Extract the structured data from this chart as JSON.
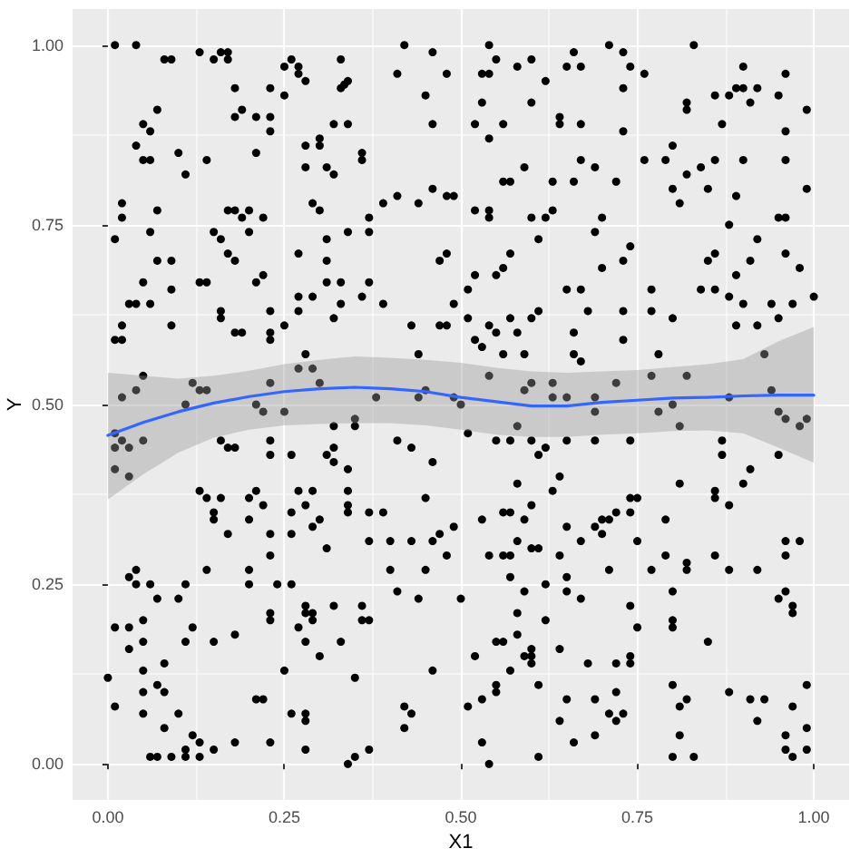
{
  "chart_data": {
    "type": "scatter",
    "xlabel": "X1",
    "ylabel": "Y",
    "xlim": [
      -0.05,
      1.05
    ],
    "ylim": [
      -0.05,
      1.05
    ],
    "xticks": [
      {
        "value": 0,
        "label": "0.00"
      },
      {
        "value": 0.25,
        "label": "0.25"
      },
      {
        "value": 0.5,
        "label": "0.50"
      },
      {
        "value": 0.75,
        "label": "0.75"
      },
      {
        "value": 1,
        "label": "1.00"
      }
    ],
    "yticks": [
      {
        "value": 0,
        "label": "0.00"
      },
      {
        "value": 0.25,
        "label": "0.25"
      },
      {
        "value": 0.5,
        "label": "0.50"
      },
      {
        "value": 0.75,
        "label": "0.75"
      },
      {
        "value": 1,
        "label": "1.00"
      }
    ],
    "grid": true,
    "marker": "circle",
    "series": [
      {
        "color": "#000000",
        "x": [
          0.01,
          0.04,
          0.08,
          0.09,
          0.13,
          0.15,
          0.16,
          0.17,
          0.17,
          0.18,
          0.19,
          0.18,
          0.21,
          0.23,
          0.23,
          0.23,
          0.25,
          0.26,
          0.27,
          0.27,
          0.28,
          0.25,
          0.33,
          0.33,
          0.335,
          0.34,
          0.34,
          0.32,
          0.07,
          0.05,
          0.06,
          0.04,
          0.05,
          0.06,
          0.1,
          0.11,
          0.14,
          0.21,
          0.28,
          0.3,
          0.3,
          0.28,
          0.31,
          0.32,
          0.36,
          0.36,
          0.41,
          0.42,
          0.46,
          0.48,
          0.45,
          0.46,
          0.01,
          0.02,
          0.02,
          0.07,
          0.06,
          0.17,
          0.18,
          0.2,
          0.19,
          0.22,
          0.15,
          0.16,
          0.2,
          0.17,
          0.18,
          0.07,
          0.09,
          0.05,
          0.03,
          0.04,
          0.06,
          0.09,
          0.13,
          0.14,
          0.21,
          0.22,
          0.16,
          0.16,
          0.18,
          0.19,
          0.09,
          0.02,
          0.01,
          0.02,
          0.05,
          0.23,
          0.23,
          0.23,
          0.25,
          0.27,
          0.27,
          0.27,
          0.29,
          0.31,
          0.31,
          0.29,
          0.3,
          0.31,
          0.34,
          0.37,
          0.37,
          0.33,
          0.33,
          0.36,
          0.37,
          0.39,
          0.32,
          0.39,
          0.41,
          0.44,
          0.46,
          0.48,
          0.49,
          0.47,
          0.48,
          0.49,
          0.51,
          0.43,
          0.47,
          0.48,
          0.44,
          0.28,
          0.27,
          0.29,
          0.3,
          0.23,
          0.12,
          0.13,
          0.14,
          0.04,
          0.02,
          0.11,
          0.21,
          0.22,
          0.25,
          0.38,
          0.45,
          0.44,
          0.49,
          0.5,
          0.54,
          0.55,
          0.53,
          0.54,
          0.58,
          0.6,
          0.62,
          0.6,
          0.53,
          0.52,
          0.56,
          0.54,
          0.65,
          0.66,
          0.67,
          0.71,
          0.73,
          0.74,
          0.73,
          0.76,
          0.83,
          0.64,
          0.64,
          0.67,
          0.73,
          0.59,
          0.56,
          0.57,
          0.63,
          0.66,
          0.67,
          0.69,
          0.72,
          0.52,
          0.54,
          0.54,
          0.6,
          0.62,
          0.63,
          0.61,
          0.69,
          0.7,
          0.74,
          0.73,
          0.7,
          0.57,
          0.56,
          0.55,
          0.52,
          0.51,
          0.54,
          0.57,
          0.55,
          0.58,
          0.6,
          0.61,
          0.52,
          0.53,
          0.56,
          0.59,
          0.65,
          0.67,
          0.68,
          0.66,
          0.66,
          0.67,
          0.73,
          0.73,
          0.77,
          0.77,
          0.8,
          0.78,
          0.76,
          0.79,
          0.8,
          0.82,
          0.8,
          0.81,
          0.84,
          0.85,
          0.86,
          0.9,
          0.82,
          0.82,
          0.86,
          0.88,
          0.89,
          0.9,
          0.9,
          0.91,
          0.92,
          0.87,
          0.96,
          0.95,
          0.99,
          0.96,
          0.96,
          0.99,
          0.89,
          0.88,
          0.95,
          0.96,
          0.92,
          0.96,
          0.98,
          0.91,
          0.89,
          0.85,
          0.86,
          0.84,
          0.86,
          0.88,
          0.9,
          0.89,
          0.92,
          0.94,
          0.95,
          0.97,
          1.0,
          0.93,
          0.54,
          0.59,
          0.6,
          0.63,
          0.63,
          0.65,
          0.69,
          0.69,
          0.72,
          0.77,
          0.82,
          0.78,
          0.8,
          0.94,
          0.95,
          0.88,
          0.01,
          0.01,
          0.02,
          0.03,
          0.05,
          0.01,
          0.03,
          0.16,
          0.17,
          0.18,
          0.23,
          0.23,
          0.26,
          0.32,
          0.35,
          0.35,
          0.32,
          0.31,
          0.32,
          0.34,
          0.41,
          0.43,
          0.46,
          0.13,
          0.14,
          0.16,
          0.2,
          0.21,
          0.22,
          0.2,
          0.15,
          0.15,
          0.17,
          0.23,
          0.23,
          0.26,
          0.27,
          0.29,
          0.28,
          0.26,
          0.3,
          0.29,
          0.31,
          0.34,
          0.34,
          0.34,
          0.37,
          0.39,
          0.37,
          0.4,
          0.43,
          0.45,
          0.46,
          0.47,
          0.49,
          0.48,
          0.4,
          0.45,
          0.41,
          0.44,
          0.5,
          0.14,
          0.2,
          0.2,
          0.24,
          0.26,
          0.23,
          0.23,
          0.28,
          0.28,
          0.29,
          0.29,
          0.32,
          0.36,
          0.37,
          0.36,
          0.27,
          0.28,
          0.3,
          0.33,
          0.03,
          0.04,
          0.04,
          0.06,
          0.07,
          0.1,
          0.11,
          0.01,
          0.03,
          0.05,
          0.03,
          0.05,
          0.12,
          0.15,
          0.18,
          0.11,
          0.08,
          0.05,
          0.0,
          0.07,
          0.08,
          0.05,
          0.01,
          0.05,
          0.08,
          0.1,
          0.25,
          0.21,
          0.22,
          0.26,
          0.28,
          0.28,
          0.35,
          0.42,
          0.43,
          0.42,
          0.46,
          0.12,
          0.13,
          0.11,
          0.11,
          0.07,
          0.09,
          0.06,
          0.13,
          0.15,
          0.18,
          0.23,
          0.28,
          0.34,
          0.35,
          0.37,
          0.81,
          0.96,
          0.98,
          0.99,
          0.58,
          0.51,
          0.55,
          0.57,
          0.6,
          0.62,
          0.61,
          0.65,
          0.69,
          0.74,
          0.87,
          0.87,
          0.95,
          0.58,
          0.64,
          0.63,
          0.81,
          0.91,
          0.9,
          0.86,
          0.86,
          0.88,
          0.6,
          0.56,
          0.57,
          0.59,
          0.53,
          0.65,
          0.67,
          0.69,
          0.7,
          0.71,
          0.72,
          0.7,
          0.74,
          0.75,
          0.74,
          0.75,
          0.79,
          0.58,
          0.54,
          0.56,
          0.57,
          0.6,
          0.61,
          0.64,
          0.57,
          0.59,
          0.62,
          0.65,
          0.65,
          0.67,
          0.71,
          0.77,
          0.79,
          0.82,
          0.82,
          0.86,
          0.88,
          0.92,
          0.96,
          0.98,
          0.96,
          0.8,
          0.95,
          0.96,
          0.97,
          0.97,
          0.58,
          0.62,
          0.58,
          0.55,
          0.56,
          0.52,
          0.57,
          0.59,
          0.6,
          0.6,
          0.6,
          0.64,
          0.68,
          0.74,
          0.75,
          0.74,
          0.74,
          0.72,
          0.8,
          0.8,
          0.85,
          0.61,
          0.55,
          0.55,
          0.53,
          0.51,
          0.65,
          0.69,
          0.72,
          0.71,
          0.72,
          0.73,
          0.64,
          0.69,
          0.66,
          0.8,
          0.82,
          0.81,
          0.81,
          0.8,
          0.83,
          0.88,
          0.91,
          0.93,
          0.92,
          0.97,
          0.99,
          0.99,
          0.96,
          0.96,
          0.97,
          0.99,
          0.53,
          0.54,
          0.61
        ],
        "values": [
          1.0,
          1.0,
          0.98,
          0.98,
          0.99,
          0.98,
          0.99,
          0.99,
          0.98,
          0.94,
          0.91,
          0.9,
          0.9,
          0.9,
          0.88,
          0.94,
          0.97,
          0.98,
          0.97,
          0.96,
          0.95,
          0.93,
          0.98,
          0.94,
          0.945,
          0.95,
          0.89,
          0.89,
          0.91,
          0.89,
          0.88,
          0.86,
          0.84,
          0.84,
          0.85,
          0.82,
          0.84,
          0.85,
          0.86,
          0.86,
          0.87,
          0.83,
          0.83,
          0.82,
          0.85,
          0.84,
          0.96,
          1.0,
          0.99,
          0.96,
          0.93,
          0.89,
          0.73,
          0.76,
          0.78,
          0.77,
          0.74,
          0.77,
          0.77,
          0.77,
          0.76,
          0.76,
          0.74,
          0.73,
          0.74,
          0.71,
          0.7,
          0.7,
          0.7,
          0.67,
          0.64,
          0.64,
          0.64,
          0.66,
          0.67,
          0.67,
          0.67,
          0.68,
          0.63,
          0.62,
          0.6,
          0.6,
          0.61,
          0.61,
          0.59,
          0.59,
          0.54,
          0.6,
          0.59,
          0.63,
          0.61,
          0.71,
          0.65,
          0.63,
          0.65,
          0.67,
          0.7,
          0.78,
          0.77,
          0.73,
          0.74,
          0.74,
          0.76,
          0.67,
          0.64,
          0.65,
          0.67,
          0.64,
          0.62,
          0.78,
          0.79,
          0.78,
          0.8,
          0.79,
          0.79,
          0.7,
          0.71,
          0.64,
          0.66,
          0.61,
          0.61,
          0.61,
          0.57,
          0.57,
          0.55,
          0.55,
          0.53,
          0.53,
          0.53,
          0.52,
          0.52,
          0.52,
          0.51,
          0.5,
          0.5,
          0.49,
          0.49,
          0.51,
          0.52,
          0.51,
          0.51,
          0.5,
          1.0,
          0.98,
          0.96,
          0.96,
          0.97,
          0.98,
          0.95,
          0.92,
          0.92,
          0.89,
          0.89,
          0.87,
          0.97,
          0.99,
          0.97,
          1.0,
          0.99,
          0.97,
          0.94,
          0.96,
          1.0,
          0.9,
          0.89,
          0.89,
          0.88,
          0.83,
          0.81,
          0.81,
          0.81,
          0.81,
          0.84,
          0.83,
          0.81,
          0.77,
          0.77,
          0.76,
          0.76,
          0.76,
          0.77,
          0.73,
          0.74,
          0.76,
          0.72,
          0.7,
          0.69,
          0.71,
          0.69,
          0.68,
          0.68,
          0.62,
          0.61,
          0.62,
          0.6,
          0.6,
          0.62,
          0.63,
          0.59,
          0.58,
          0.57,
          0.57,
          0.66,
          0.66,
          0.63,
          0.6,
          0.57,
          0.56,
          0.63,
          0.59,
          0.66,
          0.63,
          0.62,
          0.57,
          0.84,
          0.84,
          0.86,
          0.82,
          0.8,
          0.78,
          0.83,
          0.8,
          0.84,
          0.84,
          0.91,
          0.92,
          0.93,
          0.93,
          0.94,
          0.94,
          0.97,
          0.92,
          0.94,
          0.89,
          0.96,
          0.93,
          0.91,
          0.88,
          0.84,
          0.8,
          0.79,
          0.75,
          0.76,
          0.76,
          0.73,
          0.71,
          0.69,
          0.7,
          0.68,
          0.7,
          0.71,
          0.66,
          0.66,
          0.65,
          0.64,
          0.61,
          0.61,
          0.64,
          0.62,
          0.64,
          0.65,
          0.57,
          0.54,
          0.52,
          0.53,
          0.53,
          0.51,
          0.51,
          0.51,
          0.49,
          0.53,
          0.54,
          0.54,
          0.49,
          0.5,
          0.52,
          0.49,
          0.51,
          0.46,
          0.44,
          0.45,
          0.44,
          0.45,
          0.41,
          0.4,
          0.45,
          0.44,
          0.44,
          0.45,
          0.43,
          0.43,
          0.47,
          0.47,
          0.48,
          0.44,
          0.43,
          0.42,
          0.41,
          0.45,
          0.44,
          0.42,
          0.38,
          0.37,
          0.37,
          0.37,
          0.38,
          0.36,
          0.34,
          0.35,
          0.34,
          0.32,
          0.32,
          0.29,
          0.32,
          0.38,
          0.38,
          0.36,
          0.35,
          0.34,
          0.33,
          0.3,
          0.38,
          0.36,
          0.35,
          0.35,
          0.35,
          0.31,
          0.31,
          0.31,
          0.37,
          0.31,
          0.32,
          0.33,
          0.29,
          0.27,
          0.27,
          0.24,
          0.23,
          0.23,
          0.27,
          0.27,
          0.25,
          0.25,
          0.25,
          0.21,
          0.2,
          0.22,
          0.21,
          0.21,
          0.2,
          0.22,
          0.22,
          0.2,
          0.2,
          0.19,
          0.17,
          0.15,
          0.17,
          0.26,
          0.27,
          0.25,
          0.25,
          0.23,
          0.23,
          0.25,
          0.19,
          0.19,
          0.2,
          0.16,
          0.17,
          0.19,
          0.17,
          0.18,
          0.17,
          0.14,
          0.13,
          0.12,
          0.11,
          0.1,
          0.1,
          0.08,
          0.07,
          0.05,
          0.07,
          0.13,
          0.09,
          0.09,
          0.07,
          0.07,
          0.06,
          0.12,
          0.08,
          0.07,
          0.05,
          0.13,
          0.04,
          0.03,
          0.01,
          0.02,
          0.01,
          0.01,
          0.01,
          0.01,
          0.02,
          0.03,
          0.03,
          0.02,
          0.0,
          0.01,
          0.02,
          0.47,
          0.48,
          0.47,
          0.48,
          0.47,
          0.46,
          0.45,
          0.45,
          0.45,
          0.44,
          0.43,
          0.45,
          0.45,
          0.45,
          0.45,
          0.43,
          0.43,
          0.39,
          0.4,
          0.38,
          0.39,
          0.41,
          0.39,
          0.38,
          0.37,
          0.36,
          0.36,
          0.35,
          0.35,
          0.34,
          0.34,
          0.33,
          0.31,
          0.33,
          0.34,
          0.34,
          0.35,
          0.32,
          0.37,
          0.37,
          0.35,
          0.31,
          0.34,
          0.31,
          0.29,
          0.29,
          0.29,
          0.3,
          0.3,
          0.29,
          0.26,
          0.24,
          0.25,
          0.26,
          0.24,
          0.23,
          0.27,
          0.27,
          0.29,
          0.27,
          0.28,
          0.29,
          0.27,
          0.27,
          0.31,
          0.31,
          0.29,
          0.24,
          0.23,
          0.24,
          0.22,
          0.21,
          0.21,
          0.2,
          0.18,
          0.17,
          0.17,
          0.15,
          0.13,
          0.15,
          0.15,
          0.14,
          0.16,
          0.16,
          0.14,
          0.22,
          0.19,
          0.15,
          0.14,
          0.14,
          0.2,
          0.19,
          0.17,
          0.11,
          0.11,
          0.1,
          0.09,
          0.08,
          0.09,
          0.09,
          0.1,
          0.07,
          0.06,
          0.07,
          0.06,
          0.04,
          0.03,
          0.11,
          0.09,
          0.08,
          0.04,
          0.01,
          0.01,
          0.1,
          0.09,
          0.09,
          0.06,
          0.08,
          0.11,
          0.05,
          0.04,
          0.02,
          0.01,
          0.02,
          0.03,
          0.0,
          0.01
        ]
      },
      {
        "type": "line",
        "color": "#3366ff",
        "marker": "none",
        "x": [
          0,
          0.05,
          0.1,
          0.15,
          0.2,
          0.25,
          0.3,
          0.35,
          0.4,
          0.45,
          0.5,
          0.55,
          0.6,
          0.65,
          0.7,
          0.75,
          0.8,
          0.85,
          0.9,
          0.95,
          1
        ],
        "values": [
          0.457,
          0.475,
          0.49,
          0.502,
          0.511,
          0.518,
          0.522,
          0.524,
          0.522,
          0.518,
          0.51,
          0.504,
          0.498,
          0.498,
          0.503,
          0.506,
          0.509,
          0.51,
          0.512,
          0.513,
          0.513
        ],
        "lower": [
          0.368,
          0.403,
          0.433,
          0.454,
          0.465,
          0.471,
          0.473,
          0.474,
          0.474,
          0.471,
          0.465,
          0.458,
          0.455,
          0.455,
          0.458,
          0.46,
          0.463,
          0.464,
          0.46,
          0.44,
          0.419
        ],
        "upper": [
          0.544,
          0.54,
          0.536,
          0.54,
          0.547,
          0.556,
          0.562,
          0.567,
          0.565,
          0.562,
          0.558,
          0.551,
          0.546,
          0.544,
          0.546,
          0.548,
          0.552,
          0.556,
          0.563,
          0.588,
          0.608
        ]
      }
    ]
  }
}
